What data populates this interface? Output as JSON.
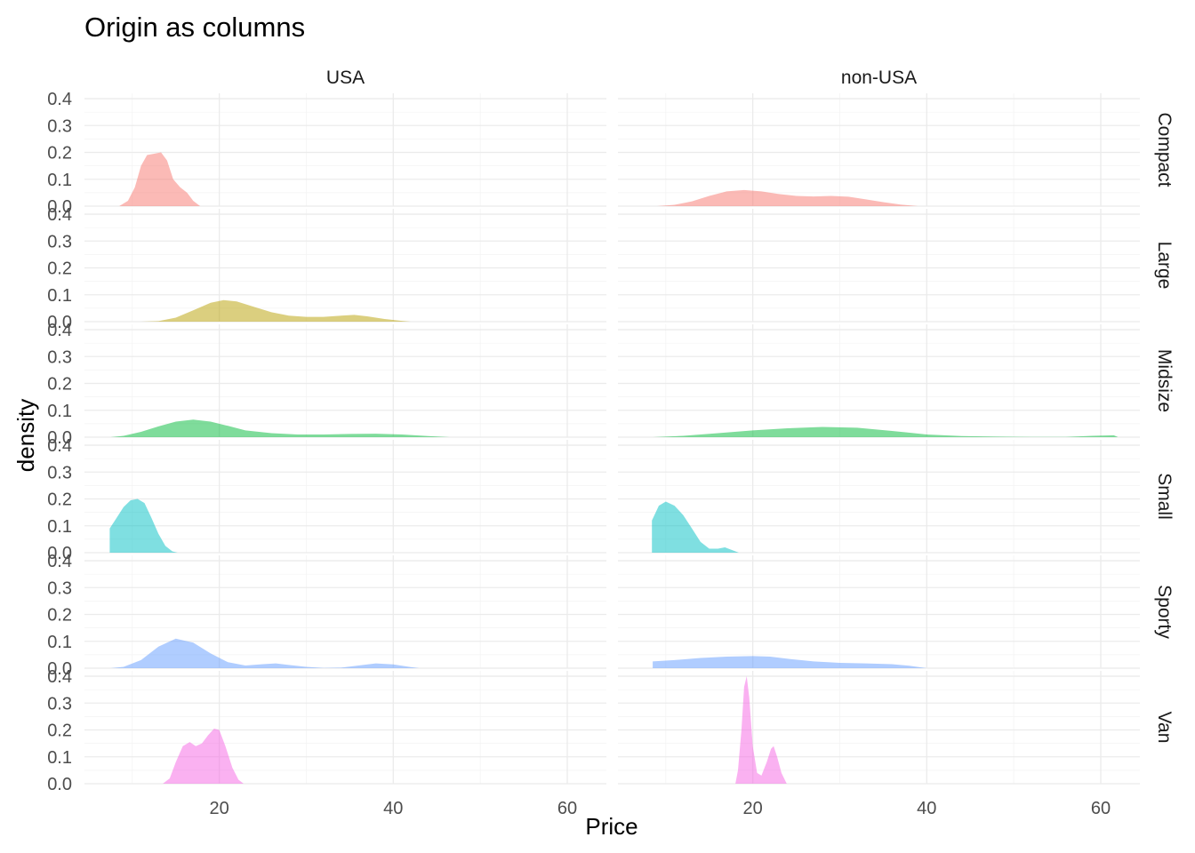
{
  "chart_data": {
    "type": "area",
    "subtype": "faceted-density",
    "title": "Origin as columns",
    "xlabel": "Price",
    "ylabel": "density",
    "xlim": [
      4.5,
      64.5
    ],
    "ylim": [
      0,
      0.42
    ],
    "x_ticks": [
      20,
      40,
      60
    ],
    "y_ticks": [
      0.0,
      0.1,
      0.2,
      0.3,
      0.4
    ],
    "y_tick_labels": [
      "0.0",
      "0.1",
      "0.2",
      "0.3",
      "0.4"
    ],
    "grid": true,
    "legend": "none",
    "columns": [
      "USA",
      "non-USA"
    ],
    "rows": [
      {
        "name": "Compact",
        "color": "#F8766D"
      },
      {
        "name": "Large",
        "color": "#B79F00"
      },
      {
        "name": "Midsize",
        "color": "#00BA38"
      },
      {
        "name": "Small",
        "color": "#00BFC4"
      },
      {
        "name": "Sporty",
        "color": "#619CFF"
      },
      {
        "name": "Van",
        "color": "#F564E3"
      }
    ],
    "panels": [
      {
        "row": "Compact",
        "column": "USA",
        "points": [
          [
            8.5,
            0
          ],
          [
            9.5,
            0.02
          ],
          [
            10.3,
            0.07
          ],
          [
            11,
            0.15
          ],
          [
            11.7,
            0.19
          ],
          [
            12.5,
            0.195
          ],
          [
            13.3,
            0.2
          ],
          [
            14,
            0.17
          ],
          [
            14.7,
            0.1
          ],
          [
            15.5,
            0.07
          ],
          [
            16.3,
            0.05
          ],
          [
            17,
            0.02
          ],
          [
            17.8,
            0
          ]
        ]
      },
      {
        "row": "Compact",
        "column": "non-USA",
        "points": [
          [
            9,
            0
          ],
          [
            11,
            0.005
          ],
          [
            13,
            0.018
          ],
          [
            15,
            0.038
          ],
          [
            17,
            0.055
          ],
          [
            19,
            0.06
          ],
          [
            21,
            0.055
          ],
          [
            23,
            0.045
          ],
          [
            25,
            0.038
          ],
          [
            27,
            0.036
          ],
          [
            29,
            0.038
          ],
          [
            31,
            0.035
          ],
          [
            33,
            0.025
          ],
          [
            35,
            0.015
          ],
          [
            37,
            0.006
          ],
          [
            39,
            0
          ]
        ]
      },
      {
        "row": "Large",
        "column": "USA",
        "points": [
          [
            11,
            0
          ],
          [
            13,
            0.002
          ],
          [
            15,
            0.015
          ],
          [
            17,
            0.042
          ],
          [
            19,
            0.07
          ],
          [
            20.5,
            0.08
          ],
          [
            22,
            0.075
          ],
          [
            24,
            0.055
          ],
          [
            26,
            0.035
          ],
          [
            28,
            0.022
          ],
          [
            30,
            0.018
          ],
          [
            32,
            0.018
          ],
          [
            34,
            0.022
          ],
          [
            35.5,
            0.025
          ],
          [
            37,
            0.02
          ],
          [
            39,
            0.01
          ],
          [
            41,
            0.003
          ],
          [
            42,
            0
          ]
        ]
      },
      {
        "row": "Midsize",
        "column": "USA",
        "points": [
          [
            7.5,
            0
          ],
          [
            9,
            0.005
          ],
          [
            11,
            0.02
          ],
          [
            13,
            0.04
          ],
          [
            15,
            0.058
          ],
          [
            17,
            0.065
          ],
          [
            19,
            0.058
          ],
          [
            21,
            0.042
          ],
          [
            23,
            0.025
          ],
          [
            26,
            0.015
          ],
          [
            29,
            0.01
          ],
          [
            32,
            0.01
          ],
          [
            35,
            0.012
          ],
          [
            38,
            0.013
          ],
          [
            41,
            0.01
          ],
          [
            44,
            0.004
          ],
          [
            46.5,
            0
          ]
        ]
      },
      {
        "row": "Midsize",
        "column": "non-USA",
        "points": [
          [
            8.5,
            0
          ],
          [
            12,
            0.005
          ],
          [
            16,
            0.015
          ],
          [
            20,
            0.025
          ],
          [
            24,
            0.033
          ],
          [
            28,
            0.038
          ],
          [
            32,
            0.035
          ],
          [
            36,
            0.023
          ],
          [
            40,
            0.01
          ],
          [
            44,
            0.004
          ],
          [
            48,
            0.002
          ],
          [
            52,
            0.001
          ],
          [
            56,
            0.001
          ],
          [
            59,
            0.005
          ],
          [
            61.5,
            0.007
          ],
          [
            62,
            0
          ]
        ]
      },
      {
        "row": "Small",
        "column": "USA",
        "points": [
          [
            7.4,
            0
          ],
          [
            7.4,
            0.09
          ],
          [
            8.2,
            0.13
          ],
          [
            9,
            0.17
          ],
          [
            9.8,
            0.195
          ],
          [
            10.6,
            0.2
          ],
          [
            11.4,
            0.185
          ],
          [
            12.2,
            0.13
          ],
          [
            13,
            0.07
          ],
          [
            13.8,
            0.025
          ],
          [
            14.6,
            0.005
          ],
          [
            15.2,
            0
          ]
        ]
      },
      {
        "row": "Small",
        "column": "non-USA",
        "points": [
          [
            8.4,
            0
          ],
          [
            8.4,
            0.12
          ],
          [
            9.2,
            0.175
          ],
          [
            10,
            0.19
          ],
          [
            11,
            0.175
          ],
          [
            12,
            0.14
          ],
          [
            13,
            0.09
          ],
          [
            14,
            0.04
          ],
          [
            15,
            0.015
          ],
          [
            16,
            0.015
          ],
          [
            16.8,
            0.02
          ],
          [
            17.6,
            0.01
          ],
          [
            18.4,
            0
          ]
        ]
      },
      {
        "row": "Sporty",
        "column": "USA",
        "points": [
          [
            7.5,
            0
          ],
          [
            9,
            0.005
          ],
          [
            11,
            0.03
          ],
          [
            13,
            0.08
          ],
          [
            15,
            0.11
          ],
          [
            17,
            0.095
          ],
          [
            19,
            0.055
          ],
          [
            21,
            0.022
          ],
          [
            23,
            0.01
          ],
          [
            25,
            0.015
          ],
          [
            26.5,
            0.018
          ],
          [
            28,
            0.012
          ],
          [
            30,
            0.005
          ],
          [
            32,
            0.001
          ],
          [
            34,
            0.002
          ],
          [
            36,
            0.01
          ],
          [
            38,
            0.018
          ],
          [
            40,
            0.014
          ],
          [
            42,
            0.004
          ],
          [
            43,
            0
          ]
        ]
      },
      {
        "row": "Sporty",
        "column": "non-USA",
        "points": [
          [
            8.5,
            0
          ],
          [
            8.5,
            0.025
          ],
          [
            11,
            0.03
          ],
          [
            14,
            0.038
          ],
          [
            17,
            0.043
          ],
          [
            20,
            0.045
          ],
          [
            22,
            0.043
          ],
          [
            24,
            0.035
          ],
          [
            27,
            0.025
          ],
          [
            30,
            0.02
          ],
          [
            33,
            0.018
          ],
          [
            36,
            0.015
          ],
          [
            38,
            0.009
          ],
          [
            40,
            0
          ]
        ]
      },
      {
        "row": "Van",
        "column": "USA",
        "points": [
          [
            13.5,
            0
          ],
          [
            14.3,
            0.02
          ],
          [
            15,
            0.08
          ],
          [
            15.8,
            0.14
          ],
          [
            16.6,
            0.155
          ],
          [
            17.3,
            0.14
          ],
          [
            18,
            0.15
          ],
          [
            18.7,
            0.18
          ],
          [
            19.4,
            0.205
          ],
          [
            20,
            0.2
          ],
          [
            20.7,
            0.14
          ],
          [
            21.5,
            0.06
          ],
          [
            22.2,
            0.015
          ],
          [
            22.8,
            0
          ]
        ]
      },
      {
        "row": "Van",
        "column": "non-USA",
        "points": [
          [
            18,
            0
          ],
          [
            18.3,
            0.05
          ],
          [
            18.7,
            0.2
          ],
          [
            19,
            0.36
          ],
          [
            19.3,
            0.4
          ],
          [
            19.6,
            0.32
          ],
          [
            20,
            0.14
          ],
          [
            20.5,
            0.04
          ],
          [
            21,
            0.03
          ],
          [
            21.6,
            0.08
          ],
          [
            22.1,
            0.13
          ],
          [
            22.4,
            0.14
          ],
          [
            22.8,
            0.1
          ],
          [
            23.3,
            0.04
          ],
          [
            23.9,
            0
          ]
        ]
      }
    ]
  }
}
